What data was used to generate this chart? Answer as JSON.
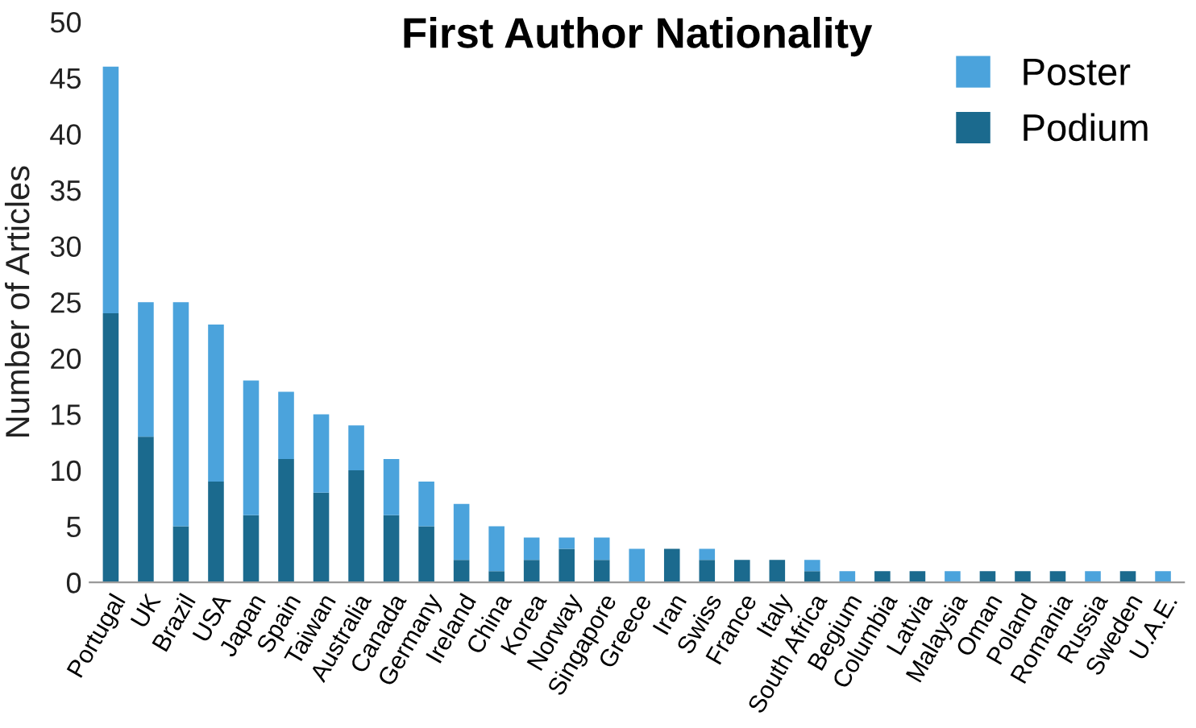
{
  "chart_data": {
    "type": "bar",
    "title": "First Author Nationality",
    "ylabel": "Number of Articles",
    "stacked": true,
    "categories": [
      "Portugal",
      "UK",
      "Brazil",
      "USA",
      "Japan",
      "Spain",
      "Taiwan",
      "Australia",
      "Canada",
      "Germany",
      "Ireland",
      "China",
      "Korea",
      "Norway",
      "Singapore",
      "Greece",
      "Iran",
      "Swiss",
      "France",
      "Italy",
      "South Africa",
      "Begium",
      "Columbia",
      "Latvia",
      "Malaysia",
      "Oman",
      "Poland",
      "Romania",
      "Russia",
      "Sweden",
      "U.A.E."
    ],
    "series": [
      {
        "name": "Podium",
        "color": "#1b6a8e",
        "values": [
          24,
          13,
          5,
          9,
          6,
          11,
          8,
          10,
          6,
          5,
          2,
          1,
          2,
          3,
          2,
          0,
          3,
          2,
          2,
          2,
          1,
          0,
          1,
          1,
          0,
          1,
          1,
          1,
          0,
          1,
          0
        ]
      },
      {
        "name": "Poster",
        "color": "#4ba3dc",
        "values": [
          22,
          12,
          20,
          14,
          12,
          6,
          7,
          4,
          5,
          4,
          5,
          4,
          2,
          1,
          2,
          3,
          0,
          1,
          0,
          0,
          1,
          1,
          0,
          0,
          1,
          0,
          0,
          0,
          1,
          0,
          1
        ]
      }
    ],
    "ylim": [
      0,
      50
    ],
    "yticks": [
      0,
      5,
      10,
      15,
      20,
      25,
      30,
      35,
      40,
      45,
      50
    ],
    "grid": false,
    "legend": "top right"
  }
}
